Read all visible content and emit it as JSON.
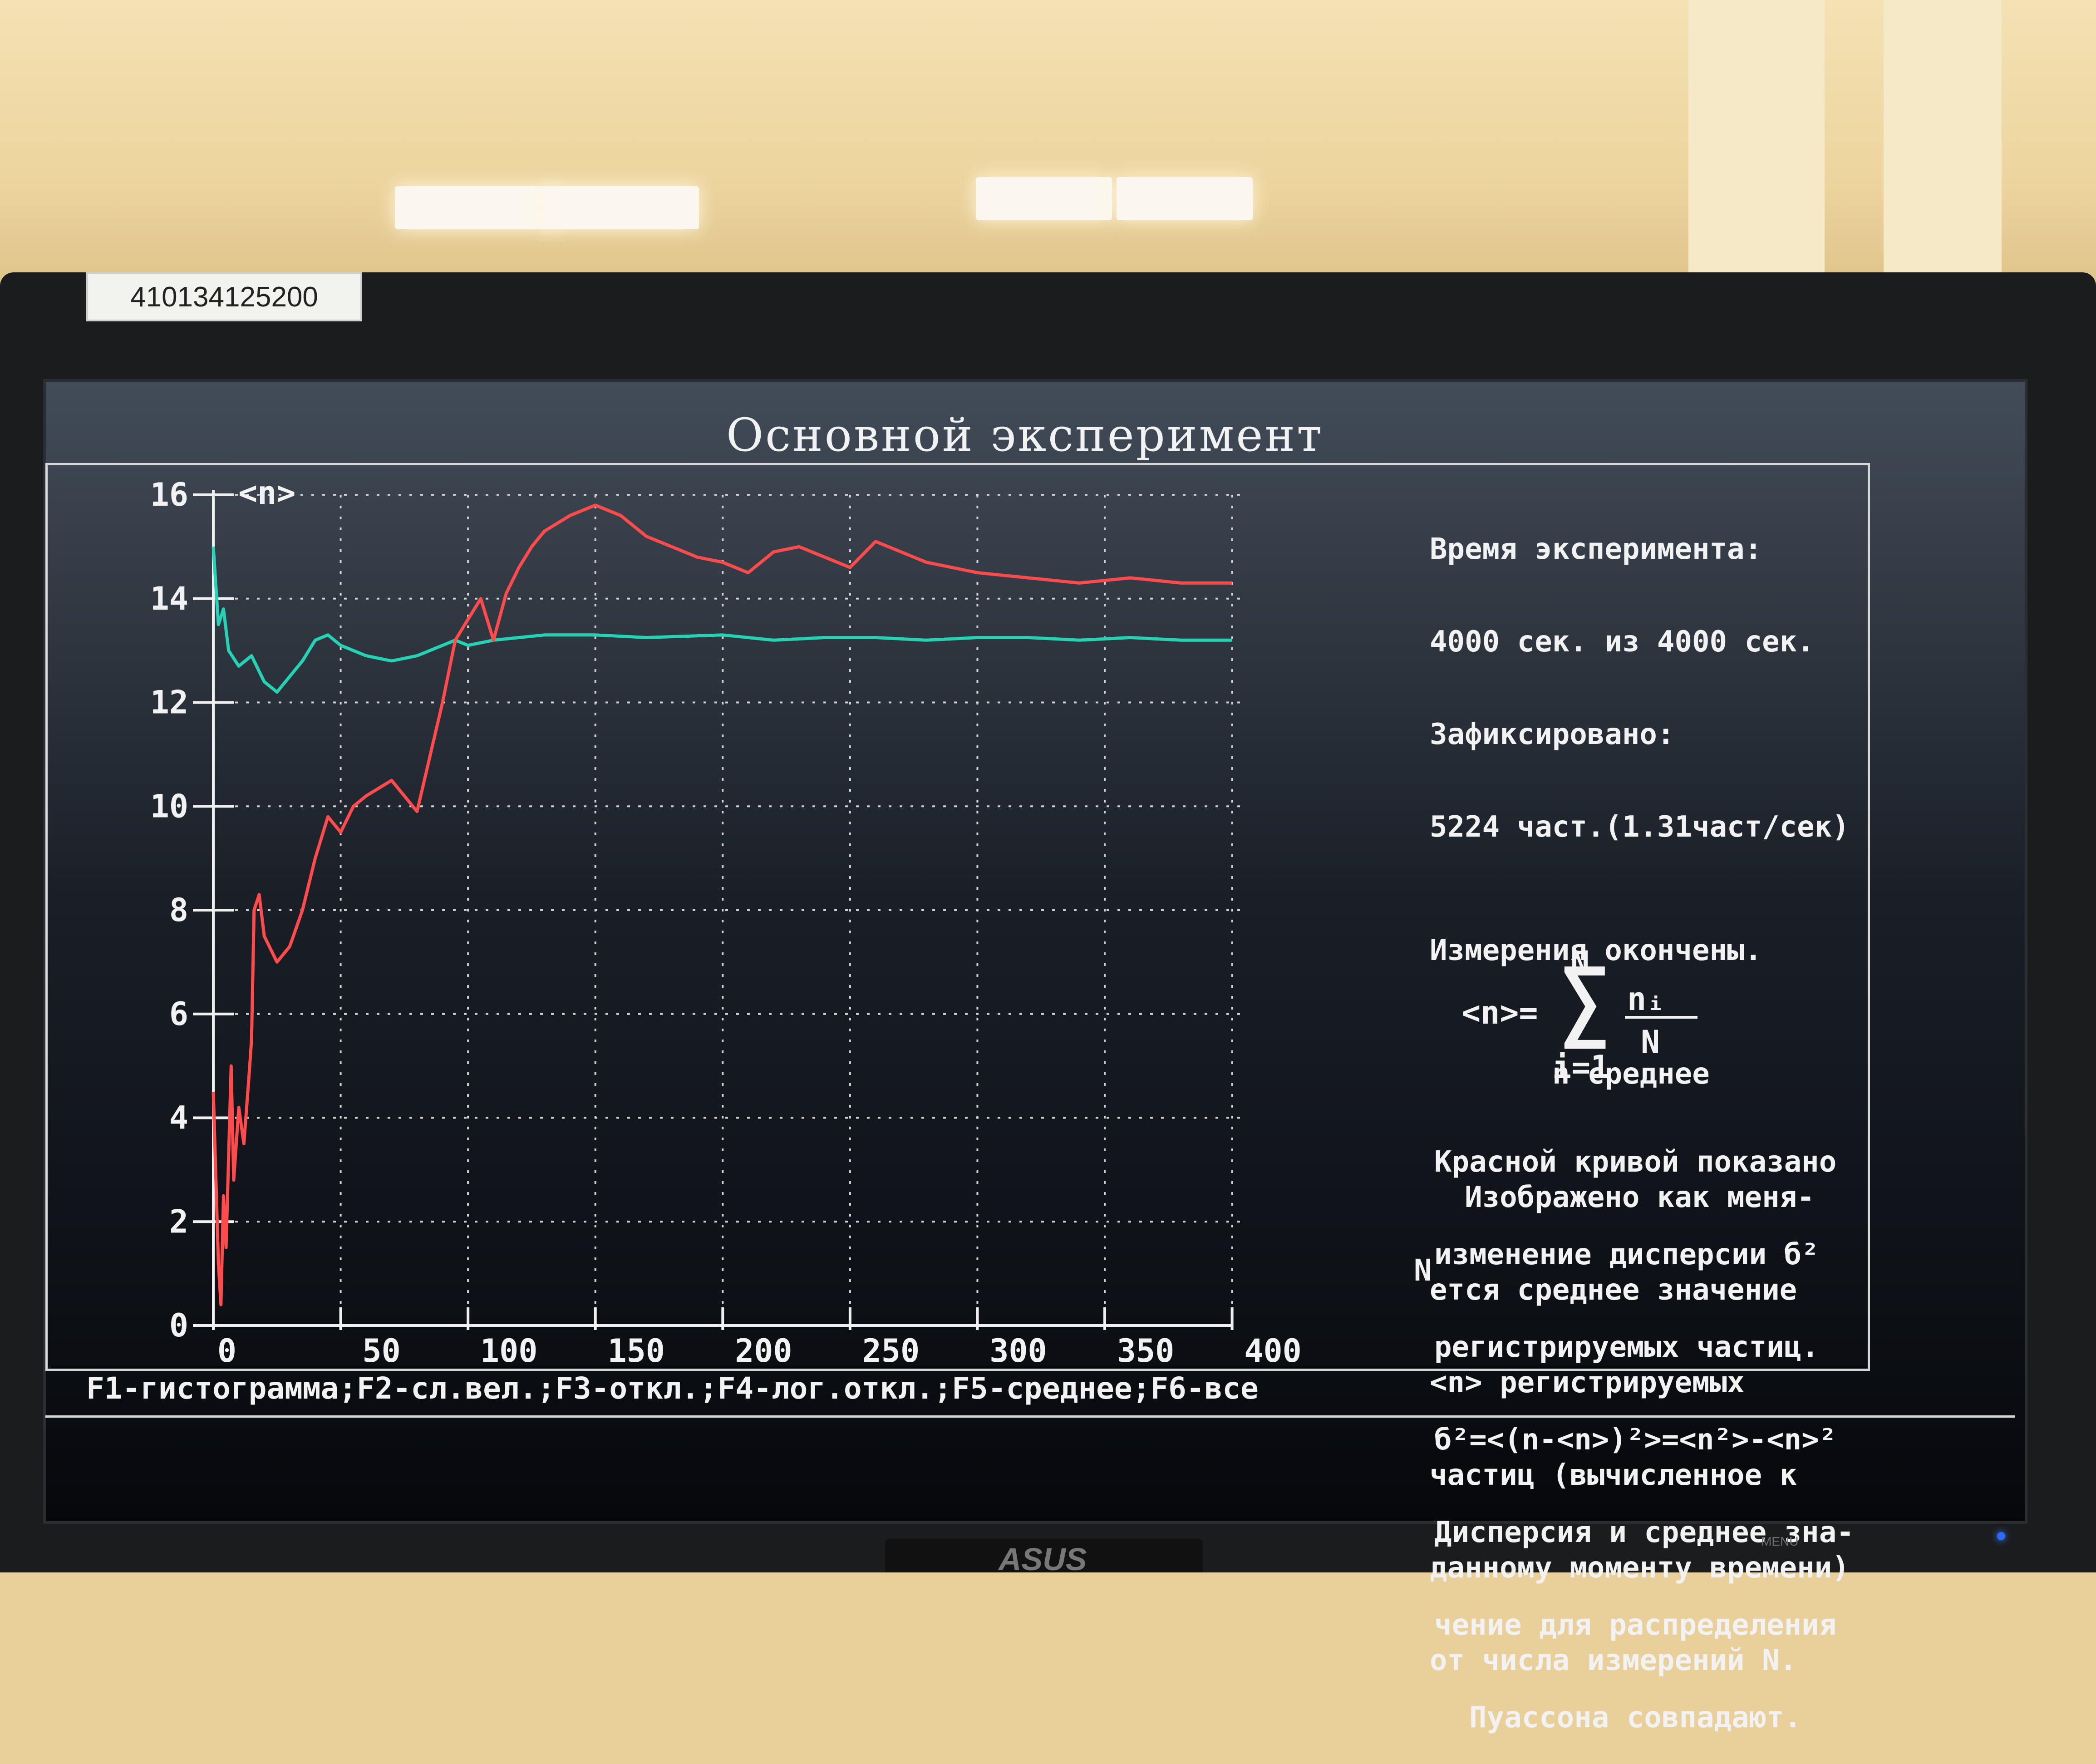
{
  "asset_tag": "410134125200",
  "screen": {
    "title": "Основной эксперимент",
    "info": {
      "time_label": "Время эксперимента:",
      "time_value": "4000 сек. из 4000 сек.",
      "fixed_label": "Зафиксировано:",
      "fixed_value": "5224 част.(1.31част/сек)",
      "status": "Измерения окончены.",
      "mode": "n среднее",
      "description": [
        "  Изображено как меня-",
        "ется среднее значение",
        "<n> регистрируемых",
        "частиц (вычисленное к",
        "данному моменту времени)",
        "от числа измерений N."
      ]
    },
    "formula": {
      "lhs": "<n>=",
      "sum_top": "N",
      "sum_bottom": "i=1",
      "numerator": "nᵢ",
      "denominator": "N"
    },
    "info2": [
      "Красной кривой показано",
      "изменение дисперсии б²",
      "регистрируемых частиц.",
      "б²=<(n-<n>)²>=<n²>-<n>²",
      "Дисперсия и среднее зна-",
      "чение для распределения",
      "  Пуассона совпадают."
    ],
    "x_axis_letter": "N",
    "footer": "F1-гистограмма;F2-сл.вел.;F3-откл.;F4-лог.откл.;F5-среднее;F6-все"
  },
  "chart_data": {
    "type": "line",
    "ylabel": "<n>",
    "xlabel": "N",
    "xlim": [
      0,
      400
    ],
    "ylim": [
      0,
      16
    ],
    "x_ticks": [
      0,
      50,
      100,
      150,
      200,
      250,
      300,
      350,
      400
    ],
    "y_ticks": [
      0,
      2,
      4,
      6,
      8,
      10,
      12,
      14,
      16
    ],
    "grid": true,
    "series": [
      {
        "color": "#25d3b4",
        "x": [
          0,
          2,
          4,
          6,
          10,
          15,
          20,
          25,
          30,
          35,
          40,
          45,
          50,
          55,
          60,
          70,
          80,
          90,
          95,
          100,
          110,
          120,
          130,
          150,
          170,
          200,
          220,
          240,
          260,
          280,
          300,
          320,
          340,
          360,
          380,
          400
        ],
        "y": [
          15.0,
          13.5,
          13.8,
          13.0,
          12.7,
          12.9,
          12.4,
          12.2,
          12.5,
          12.8,
          13.2,
          13.3,
          13.1,
          13.0,
          12.9,
          12.8,
          12.9,
          13.1,
          13.2,
          13.1,
          13.2,
          13.25,
          13.3,
          13.3,
          13.25,
          13.3,
          13.2,
          13.25,
          13.25,
          13.2,
          13.25,
          13.25,
          13.2,
          13.25,
          13.2,
          13.2
        ]
      },
      {
        "color": "#ff4b4b",
        "x": [
          0,
          2,
          3,
          4,
          5,
          7,
          8,
          10,
          12,
          14,
          15,
          16,
          18,
          20,
          25,
          30,
          35,
          40,
          45,
          50,
          55,
          60,
          70,
          80,
          90,
          95,
          100,
          105,
          110,
          115,
          120,
          125,
          130,
          140,
          150,
          160,
          170,
          180,
          190,
          200,
          210,
          220,
          230,
          240,
          250,
          260,
          270,
          280,
          290,
          300,
          320,
          340,
          360,
          380,
          400
        ],
        "y": [
          4.5,
          1.2,
          0.4,
          2.5,
          1.5,
          5.0,
          2.8,
          4.2,
          3.5,
          4.8,
          5.5,
          8.0,
          8.3,
          7.5,
          7.0,
          7.3,
          8.0,
          9.0,
          9.8,
          9.5,
          10.0,
          10.2,
          10.5,
          9.9,
          12.0,
          13.2,
          13.6,
          14.0,
          13.2,
          14.1,
          14.6,
          15.0,
          15.3,
          15.6,
          15.8,
          15.6,
          15.2,
          15.0,
          14.8,
          14.7,
          14.5,
          14.9,
          15.0,
          14.8,
          14.6,
          15.1,
          14.9,
          14.7,
          14.6,
          14.5,
          14.4,
          14.3,
          14.4,
          14.3,
          14.3
        ]
      }
    ]
  }
}
